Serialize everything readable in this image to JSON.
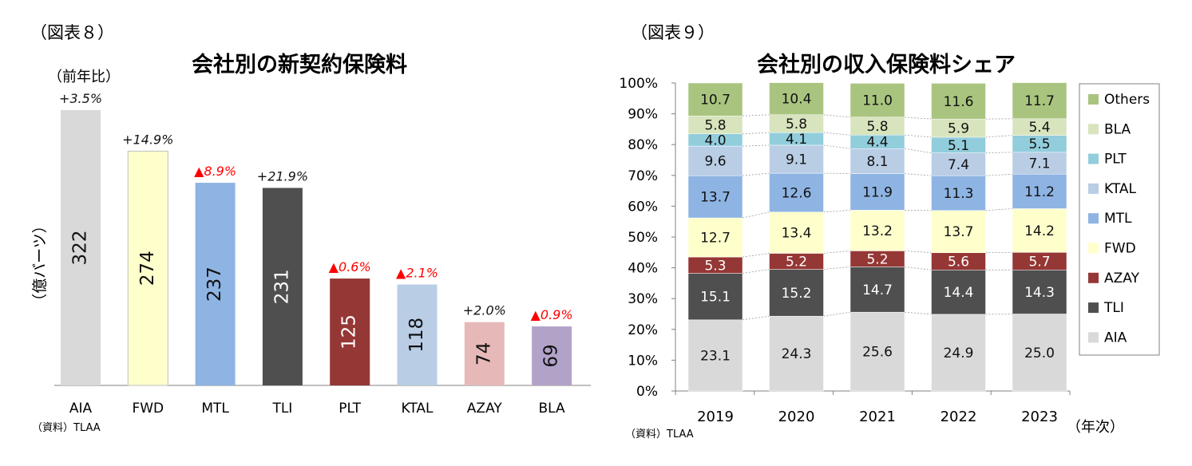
{
  "chart_data": [
    {
      "type": "bar",
      "figure_label": "（図表８）",
      "title": "会社別の新契約保険料",
      "ylabel": "（億バーツ）",
      "growth_header": "（前年比）",
      "source": "（資料）TLAA",
      "categories": [
        "AIA",
        "FWD",
        "MTL",
        "TLI",
        "PLT",
        "KTAL",
        "AZAY",
        "BLA"
      ],
      "values": [
        322,
        274,
        237,
        231,
        125,
        118,
        74,
        69
      ],
      "value_labels": [
        "322",
        "274",
        "237",
        "231",
        "125",
        "118",
        "74",
        "69"
      ],
      "growth": [
        "+3.5%",
        "+14.9%",
        "▲8.9%",
        "+21.9%",
        "▲0.6%",
        "▲2.1%",
        "+2.0%",
        "▲0.9%"
      ],
      "growth_negative": [
        false,
        false,
        true,
        false,
        true,
        true,
        false,
        true
      ],
      "colors": [
        "#d9d9d9",
        "#ffffcc",
        "#8eb4e3",
        "#4f4f4f",
        "#953735",
        "#b9cde5",
        "#e6b9b8",
        "#b3a2c7"
      ],
      "negative_color": "#ff0000",
      "ylim": [
        0,
        350
      ]
    },
    {
      "type": "bar",
      "stacked": true,
      "figure_label": "（図表９）",
      "title": "会社別の収入保険料シェア",
      "xlabel": "（年次）",
      "source": "（資料）TLAA",
      "categories": [
        "2019",
        "2020",
        "2021",
        "2022",
        "2023"
      ],
      "yticks": [
        "0%",
        "10%",
        "20%",
        "30%",
        "40%",
        "50%",
        "60%",
        "70%",
        "80%",
        "90%",
        "100%"
      ],
      "ylim": [
        0,
        100
      ],
      "series": [
        {
          "name": "AIA",
          "color": "#d9d9d9",
          "values": [
            23.1,
            24.3,
            25.6,
            24.9,
            25.0
          ],
          "labels": [
            "23.1",
            "24.3",
            "25.6",
            "24.9",
            "25.0"
          ]
        },
        {
          "name": "TLI",
          "color": "#4f4f4f",
          "values": [
            15.1,
            15.2,
            14.7,
            14.4,
            14.3
          ],
          "labels": [
            "15.1",
            "15.2",
            "14.7",
            "14.4",
            "14.3"
          ]
        },
        {
          "name": "AZAY",
          "color": "#953735",
          "values": [
            5.3,
            5.2,
            5.2,
            5.6,
            5.7
          ],
          "labels": [
            "5.3",
            "5.2",
            "5.2",
            "5.6",
            "5.7"
          ]
        },
        {
          "name": "FWD",
          "color": "#ffffcc",
          "values": [
            12.7,
            13.4,
            13.2,
            13.7,
            14.2
          ],
          "labels": [
            "12.7",
            "13.4",
            "13.2",
            "13.7",
            "14.2"
          ]
        },
        {
          "name": "MTL",
          "color": "#8eb4e3",
          "values": [
            13.7,
            12.6,
            11.9,
            11.3,
            11.2
          ],
          "labels": [
            "13.7",
            "12.6",
            "11.9",
            "11.3",
            "11.2"
          ]
        },
        {
          "name": "KTAL",
          "color": "#b9cde5",
          "values": [
            9.6,
            9.1,
            8.1,
            7.4,
            7.1
          ],
          "labels": [
            "9.6",
            "9.1",
            "8.1",
            "7.4",
            "7.1"
          ]
        },
        {
          "name": "PLT",
          "color": "#92cddc",
          "values": [
            4.0,
            4.1,
            4.4,
            5.1,
            5.5
          ],
          "labels": [
            "4.0",
            "4.1",
            "4.4",
            "5.1",
            "5.5"
          ]
        },
        {
          "name": "BLA",
          "color": "#d7e4bd",
          "values": [
            5.8,
            5.8,
            5.8,
            5.9,
            5.4
          ],
          "labels": [
            "5.8",
            "5.8",
            "5.8",
            "5.9",
            "5.4"
          ]
        },
        {
          "name": "Others",
          "color": "#a9c47f",
          "values": [
            10.7,
            10.4,
            11.0,
            11.6,
            11.7
          ],
          "labels": [
            "10.7",
            "10.4",
            "11.0",
            "11.6",
            "11.7"
          ]
        }
      ],
      "legend_order": [
        "Others",
        "BLA",
        "PLT",
        "KTAL",
        "MTL",
        "FWD",
        "AZAY",
        "TLI",
        "AIA"
      ],
      "dark_label_series": [
        "TLI",
        "AZAY"
      ]
    }
  ]
}
